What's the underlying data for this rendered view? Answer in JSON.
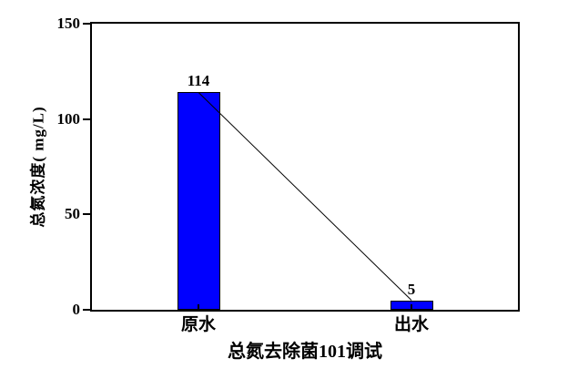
{
  "chart_data": {
    "type": "bar",
    "categories": [
      "原水",
      "出水"
    ],
    "values": [
      114,
      5
    ],
    "value_labels": [
      "114",
      "5"
    ],
    "title": "",
    "xlabel": "总氮去除菌101调试",
    "ylabel": "总氮浓度( mg/L)",
    "ylim": [
      0,
      150
    ],
    "yticks": [
      0,
      50,
      100,
      150
    ],
    "ytick_labels": [
      "0",
      "50",
      "100",
      "150"
    ],
    "grid": false,
    "legend": "none",
    "has_connector_line": true,
    "colors": {
      "bar_fill": "#0000ff",
      "bar_border": "#000000",
      "axis": "#000000",
      "line": "#000000",
      "background": "#ffffff",
      "text": "#000000"
    }
  }
}
